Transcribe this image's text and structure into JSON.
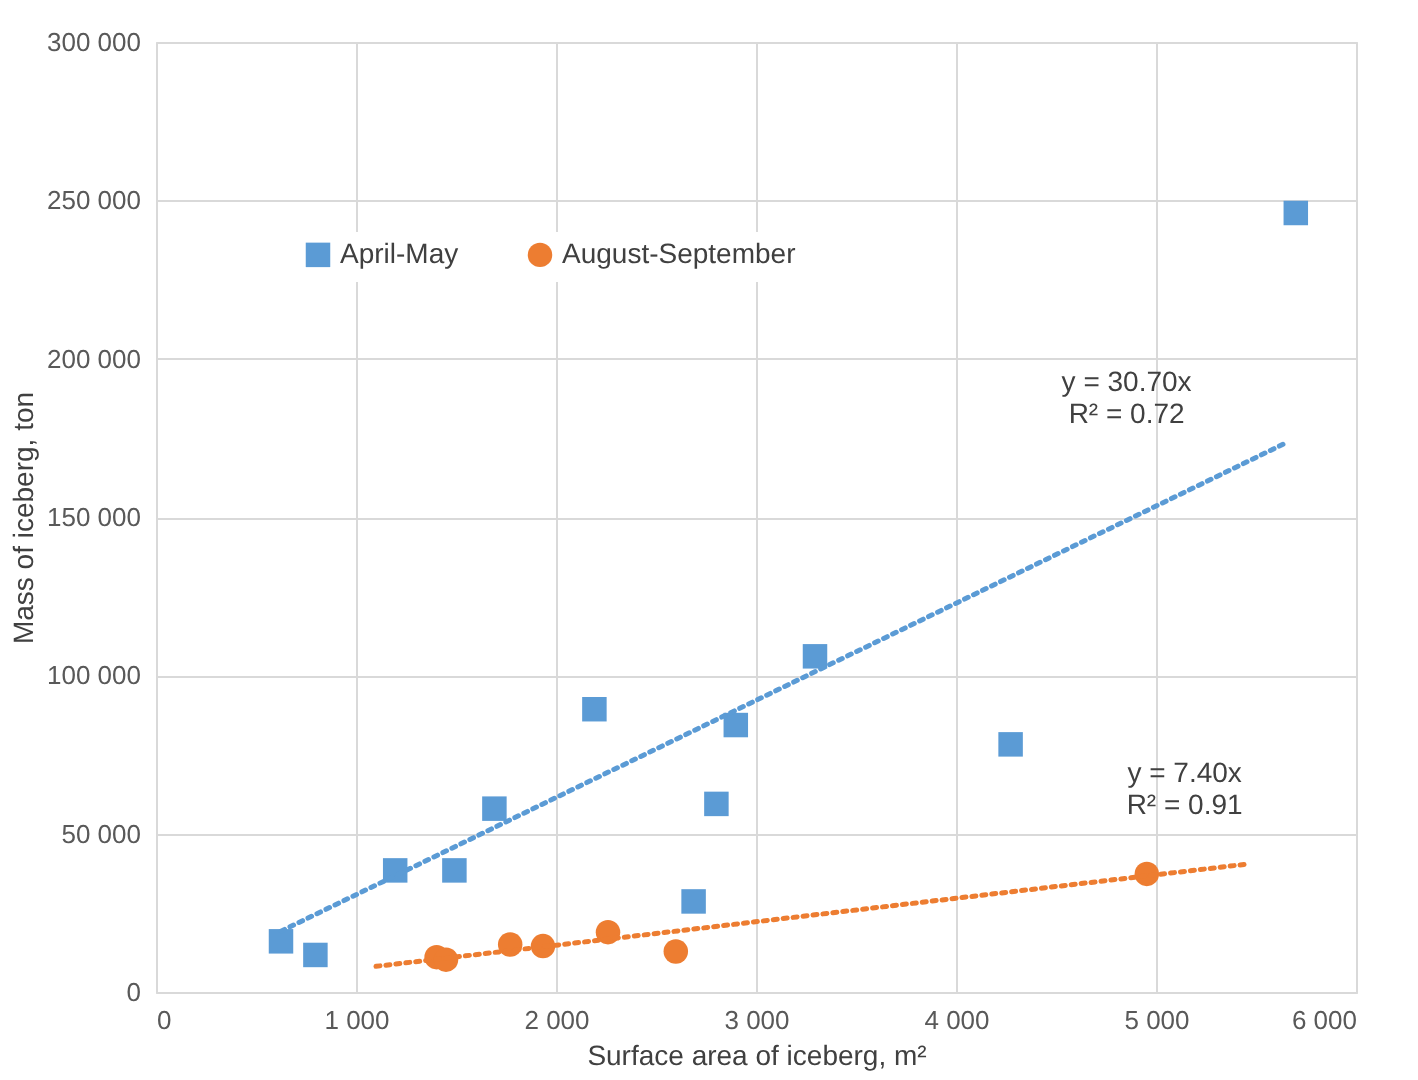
{
  "chart_data": {
    "type": "scatter",
    "xlabel": "Surface area of iceberg, m²",
    "ylabel": "Mass of iceberg, ton",
    "series": [
      {
        "name": "April-May",
        "color": "#5b9bd5",
        "marker": "square",
        "x": [
          625,
          797,
          1196,
          1492,
          1692,
          2192,
          2688,
          2802,
          2899,
          3295,
          4273,
          5699
        ],
        "values": [
          16000,
          11700,
          38400,
          38400,
          57900,
          89300,
          28600,
          59400,
          84300,
          106000,
          78200,
          246000
        ]
      },
      {
        "name": "August-September",
        "color": "#ed7d31",
        "marker": "circle",
        "x": [
          1403,
          1450,
          1771,
          1935,
          2260,
          2599,
          4954
        ],
        "values": [
          11000,
          10200,
          15000,
          14500,
          18900,
          12800,
          37300
        ]
      },
      {
        "type": "line",
        "color": "#5b9bd5",
        "line_style": "dotted",
        "marker": "none",
        "x": [
          625,
          5653
        ],
        "values": [
          19200,
          173500
        ]
      },
      {
        "type": "line",
        "color": "#ed7d31",
        "line_style": "dotted",
        "marker": "none",
        "x": [
          1100,
          5443
        ],
        "values": [
          8100,
          40300
        ]
      }
    ],
    "annotations": [
      "y = 30.70x\nR² = 0.72",
      "y = 7.40x\nR² = 0.91"
    ],
    "xlim": [
      0,
      6000
    ],
    "xticks": [
      0,
      {
        "value": 1000,
        "label": "1 000"
      },
      {
        "value": 2000,
        "label": "2 000"
      },
      {
        "value": 3000,
        "label": "3 000"
      },
      {
        "value": 4000,
        "label": "4 000"
      },
      {
        "value": 5000,
        "label": "5 000"
      },
      {
        "value": 6000,
        "label": "6 000"
      }
    ],
    "ylim": [
      0,
      300000
    ],
    "yticks": [
      0,
      {
        "value": 50000,
        "label": "50 000"
      },
      {
        "value": 100000,
        "label": "100 000"
      },
      {
        "value": 150000,
        "label": "150 000"
      },
      {
        "value": 200000,
        "label": "200 000"
      },
      {
        "value": 250000,
        "label": "250 000"
      },
      {
        "value": 300000,
        "label": "300 000"
      }
    ],
    "grid": true,
    "legend": "top left"
  }
}
